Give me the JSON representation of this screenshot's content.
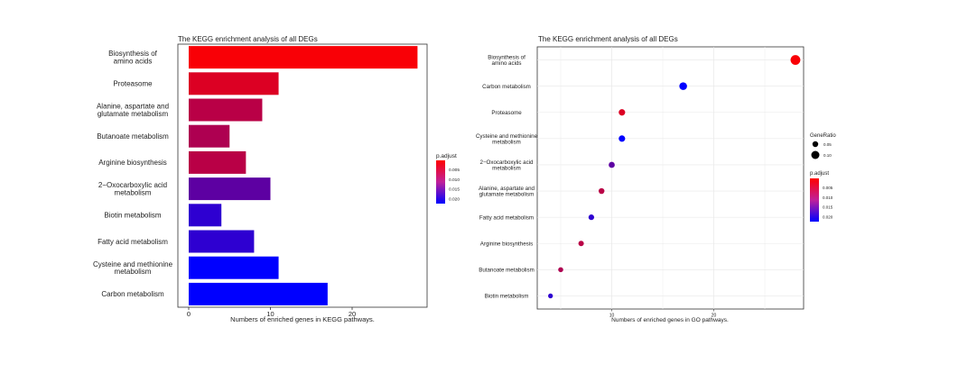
{
  "charts": {
    "bar": {
      "title": "The KEGG enrichment analysis of all DEGs",
      "xlabel": "Numbers of enriched genes in KEGG pathways.",
      "legend_title": "p.adjust",
      "legend_ticks": [
        "0.005",
        "0.010",
        "0.015",
        "0.020"
      ]
    },
    "dot": {
      "title": "The KEGG enrichment analysis of all DEGs",
      "xlabel": "Numbers of enriched genes in GO pathways.",
      "size_legend_title": "GeneRatio",
      "size_legend_ticks": [
        "0.05",
        "0.10"
      ],
      "color_legend_title": "p.adjust",
      "color_legend_ticks": [
        "0.005",
        "0.010",
        "0.015",
        "0.020"
      ]
    }
  },
  "chart_data": [
    {
      "type": "bar",
      "orientation": "horizontal",
      "title": "The KEGG enrichment analysis of all DEGs",
      "xlabel": "Numbers of enriched genes in KEGG pathways.",
      "xlim": [
        0,
        28
      ],
      "xticks": [
        "0",
        "10",
        "20"
      ],
      "grid": false,
      "legend_position": "right",
      "categories": [
        "Biosynthesis of amino acids",
        "Proteasome",
        "Alanine, aspartate and glutamate metabolism",
        "Butanoate metabolism",
        "Arginine biosynthesis",
        "2-Oxocarboxylic acid metabolism",
        "Biotin metabolism",
        "Fatty acid metabolism",
        "Cysteine and methionine metabolism",
        "Carbon metabolism"
      ],
      "labels": [
        [
          "Biosynthesis of",
          "amino acids"
        ],
        [
          "Proteasome"
        ],
        [
          "Alanine, aspartate and",
          "glutamate metabolism"
        ],
        [
          "Butanoate metabolism"
        ],
        [
          "Arginine biosynthesis"
        ],
        [
          "2−Oxocarboxylic acid",
          "metabolism"
        ],
        [
          "Biotin metabolism"
        ],
        [
          "Fatty acid metabolism"
        ],
        [
          "Cysteine and methionine",
          "metabolism"
        ],
        [
          "Carbon metabolism"
        ]
      ],
      "values": [
        28,
        11,
        9,
        5,
        7,
        10,
        4,
        8,
        11,
        17
      ],
      "p_adjust": [
        0.0005,
        0.003,
        0.006,
        0.007,
        0.006,
        0.014,
        0.018,
        0.018,
        0.022,
        0.022
      ],
      "color_scale": {
        "low": "#ff0000",
        "high": "#0000ff",
        "min": 0.0,
        "max": 0.022
      }
    },
    {
      "type": "scatter",
      "title": "The KEGG enrichment analysis of all DEGs",
      "xlabel": "Numbers of enriched genes in GO pathways.",
      "xlim": [
        2.7,
        28.8
      ],
      "xticks": [
        10,
        20
      ],
      "grid": true,
      "legend_position": "right",
      "categories": [
        "Biosynthesis of amino acids",
        "Carbon metabolism",
        "Proteasome",
        "Cysteine and methionine metabolism",
        "2-Oxocarboxylic acid metabolism",
        "Alanine, aspartate and glutamate metabolism",
        "Fatty acid metabolism",
        "Arginine biosynthesis",
        "Butanoate metabolism",
        "Biotin metabolism"
      ],
      "labels": [
        [
          "Biosynthesis of",
          "amino acids"
        ],
        [
          "Carbon metabolism"
        ],
        [
          "Proteasome"
        ],
        [
          "Cysteine and methionine",
          "metabolism"
        ],
        [
          "2−Oxocarboxylic acid",
          "metabolism"
        ],
        [
          "Alanine, aspartate and",
          "glutamate metabolism"
        ],
        [
          "Fatty acid metabolism"
        ],
        [
          "Arginine biosynthesis"
        ],
        [
          "Butanoate metabolism"
        ],
        [
          "Biotin metabolism"
        ]
      ],
      "x": [
        28,
        17,
        11,
        11,
        10,
        9,
        8,
        7,
        5,
        4
      ],
      "gene_ratio": [
        0.14,
        0.09,
        0.06,
        0.06,
        0.05,
        0.045,
        0.04,
        0.035,
        0.025,
        0.02
      ],
      "p_adjust": [
        0.0005,
        0.022,
        0.003,
        0.022,
        0.014,
        0.006,
        0.018,
        0.006,
        0.007,
        0.018
      ],
      "color_scale": {
        "low": "#ff0000",
        "high": "#0000ff",
        "min": 0.0,
        "max": 0.022
      }
    }
  ]
}
